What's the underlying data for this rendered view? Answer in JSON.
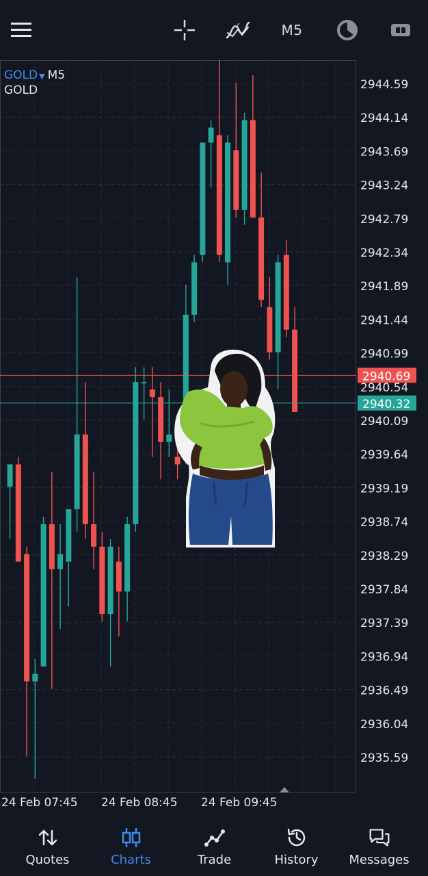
{
  "topbar": {
    "timeframe_label": "M5",
    "icons": [
      "menu-icon",
      "crosshair-icon",
      "indicators-icon",
      "timeframe-label",
      "timer-icon",
      "one-click-trading-icon"
    ]
  },
  "chart": {
    "symbol": "GOLD",
    "timeframe": "M5",
    "description": "GOLD",
    "bid_price": "2940.69",
    "ask_price": "2940.32",
    "colors": {
      "background": "#131722",
      "bull": "#26a69a",
      "bear": "#ef5350",
      "grid": "#2a2e39",
      "axis_text": "#e6e8ec",
      "accent": "#3d8cf0"
    }
  },
  "chart_data": {
    "type": "candlestick",
    "title": "GOLD, M5",
    "y_ticks": [
      "2944.59",
      "2944.14",
      "2943.69",
      "2943.24",
      "2942.79",
      "2942.34",
      "2941.89",
      "2941.44",
      "2940.99",
      "2940.54",
      "2940.09",
      "2939.64",
      "2939.19",
      "2938.74",
      "2938.29",
      "2937.84",
      "2937.39",
      "2936.94",
      "2936.49",
      "2936.04",
      "2935.59"
    ],
    "ylim": [
      2935.3,
      2945.0
    ],
    "x_ticks": [
      "24 Feb 07:45",
      "24 Feb 08:45",
      "24 Feb 09:45"
    ],
    "candles": [
      {
        "o": 2939.2,
        "h": 2939.5,
        "l": 2938.5,
        "c": 2939.5
      },
      {
        "o": 2939.5,
        "h": 2939.6,
        "l": 2938.2,
        "c": 2938.2
      },
      {
        "o": 2938.3,
        "h": 2938.4,
        "l": 2935.6,
        "c": 2936.6
      },
      {
        "o": 2936.6,
        "h": 2936.9,
        "l": 2935.3,
        "c": 2936.7
      },
      {
        "o": 2936.8,
        "h": 2938.8,
        "l": 2936.8,
        "c": 2938.7
      },
      {
        "o": 2938.7,
        "h": 2939.4,
        "l": 2936.5,
        "c": 2938.1
      },
      {
        "o": 2938.1,
        "h": 2938.7,
        "l": 2937.3,
        "c": 2938.3
      },
      {
        "o": 2938.2,
        "h": 2938.9,
        "l": 2937.6,
        "c": 2938.9
      },
      {
        "o": 2938.9,
        "h": 2942.0,
        "l": 2938.6,
        "c": 2939.9
      },
      {
        "o": 2939.9,
        "h": 2940.6,
        "l": 2938.5,
        "c": 2938.7
      },
      {
        "o": 2938.7,
        "h": 2939.4,
        "l": 2938.1,
        "c": 2938.4
      },
      {
        "o": 2938.4,
        "h": 2938.6,
        "l": 2937.4,
        "c": 2937.5
      },
      {
        "o": 2937.5,
        "h": 2938.5,
        "l": 2936.8,
        "c": 2938.4
      },
      {
        "o": 2938.2,
        "h": 2938.4,
        "l": 2937.2,
        "c": 2937.8
      },
      {
        "o": 2937.8,
        "h": 2938.8,
        "l": 2937.4,
        "c": 2938.7
      },
      {
        "o": 2938.7,
        "h": 2940.8,
        "l": 2938.6,
        "c": 2940.6
      },
      {
        "o": 2940.6,
        "h": 2940.8,
        "l": 2940.1,
        "c": 2940.6
      },
      {
        "o": 2940.5,
        "h": 2940.8,
        "l": 2939.6,
        "c": 2940.4
      },
      {
        "o": 2940.4,
        "h": 2940.6,
        "l": 2939.3,
        "c": 2939.8
      },
      {
        "o": 2939.8,
        "h": 2940.5,
        "l": 2939.6,
        "c": 2939.9
      },
      {
        "o": 2939.6,
        "h": 2939.9,
        "l": 2939.3,
        "c": 2939.5
      },
      {
        "o": 2939.6,
        "h": 2941.9,
        "l": 2939.5,
        "c": 2941.5
      },
      {
        "o": 2941.5,
        "h": 2942.3,
        "l": 2941.4,
        "c": 2942.2
      },
      {
        "o": 2942.3,
        "h": 2943.8,
        "l": 2942.2,
        "c": 2943.8
      },
      {
        "o": 2943.8,
        "h": 2944.1,
        "l": 2943.2,
        "c": 2944.0
      },
      {
        "o": 2943.9,
        "h": 2944.9,
        "l": 2942.2,
        "c": 2942.3
      },
      {
        "o": 2942.2,
        "h": 2943.9,
        "l": 2941.9,
        "c": 2943.8
      },
      {
        "o": 2943.7,
        "h": 2944.6,
        "l": 2942.8,
        "c": 2942.9
      },
      {
        "o": 2942.9,
        "h": 2944.2,
        "l": 2942.7,
        "c": 2944.1
      },
      {
        "o": 2944.1,
        "h": 2944.7,
        "l": 2942.8,
        "c": 2942.8
      },
      {
        "o": 2942.8,
        "h": 2943.4,
        "l": 2941.6,
        "c": 2941.7
      },
      {
        "o": 2941.6,
        "h": 2942.0,
        "l": 2940.9,
        "c": 2941.0
      },
      {
        "o": 2941.0,
        "h": 2942.3,
        "l": 2940.5,
        "c": 2942.2
      },
      {
        "o": 2942.3,
        "h": 2942.5,
        "l": 2941.2,
        "c": 2941.3
      },
      {
        "o": 2941.3,
        "h": 2941.6,
        "l": 2940.2,
        "c": 2940.2
      }
    ]
  },
  "nav": {
    "items": [
      {
        "label": "Quotes",
        "icon": "quotes-icon",
        "active": false
      },
      {
        "label": "Charts",
        "icon": "charts-icon",
        "active": true
      },
      {
        "label": "Trade",
        "icon": "trade-icon",
        "active": false
      },
      {
        "label": "History",
        "icon": "history-icon",
        "active": false
      },
      {
        "label": "Messages",
        "icon": "messages-icon",
        "active": false
      }
    ]
  }
}
